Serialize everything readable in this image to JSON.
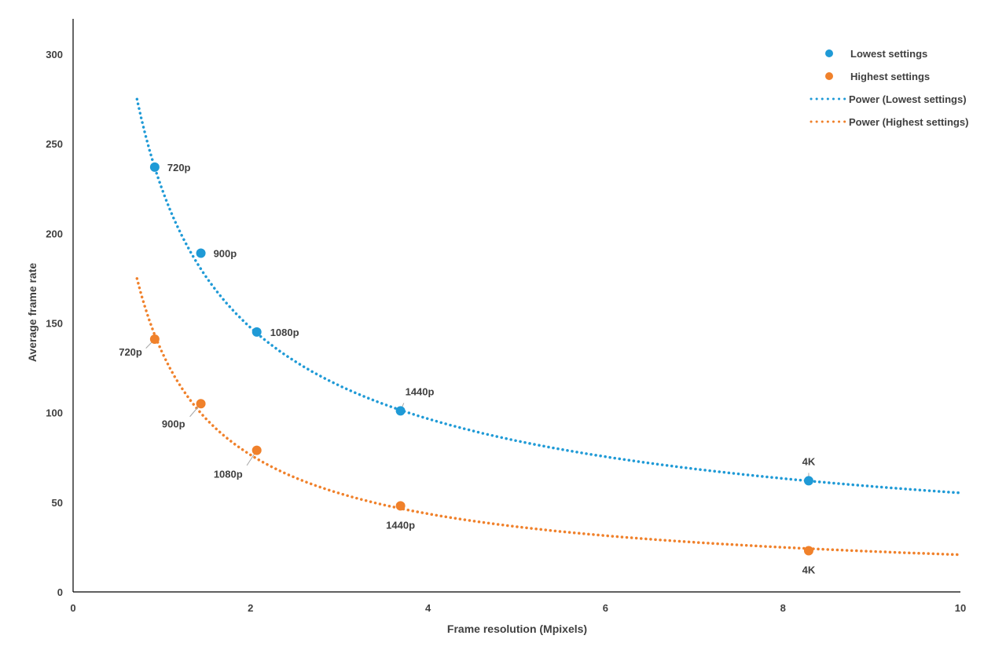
{
  "chart_data": {
    "type": "scatter",
    "title": "",
    "xlabel": "Frame resolution (Mpixels)",
    "ylabel": "Average frame rate",
    "xlim": [
      0,
      10
    ],
    "ylim": [
      0,
      300
    ],
    "xticks": [
      "0",
      "2",
      "4",
      "6",
      "8",
      "10"
    ],
    "yticks": [
      "0",
      "50",
      "100",
      "150",
      "200",
      "250",
      "300"
    ],
    "grid": false,
    "legend_position": "top-right",
    "series": [
      {
        "name": "Lowest settings",
        "color": "#1f9ad6",
        "points": [
          {
            "label": "720p",
            "x": 0.92,
            "y": 237
          },
          {
            "label": "900p",
            "x": 1.44,
            "y": 189
          },
          {
            "label": "1080p",
            "x": 2.07,
            "y": 145
          },
          {
            "label": "1440p",
            "x": 3.69,
            "y": 101
          },
          {
            "label": "4K",
            "x": 8.29,
            "y": 62
          }
        ],
        "trend": {
          "name": "Power (Lowest settings)",
          "type": "power",
          "a": 225,
          "b": -0.61,
          "x_range": [
            0.72,
            10
          ]
        }
      },
      {
        "name": "Highest settings",
        "color": "#f0812b",
        "points": [
          {
            "label": "720p",
            "x": 0.92,
            "y": 141
          },
          {
            "label": "900p",
            "x": 1.44,
            "y": 105
          },
          {
            "label": "1080p",
            "x": 2.07,
            "y": 79
          },
          {
            "label": "1440p",
            "x": 3.69,
            "y": 48
          },
          {
            "label": "4K",
            "x": 8.29,
            "y": 23
          }
        ],
        "trend": {
          "name": "Power (Highest settings)",
          "type": "power",
          "a": 134,
          "b": -0.81,
          "x_range": [
            0.72,
            10
          ]
        }
      }
    ]
  }
}
